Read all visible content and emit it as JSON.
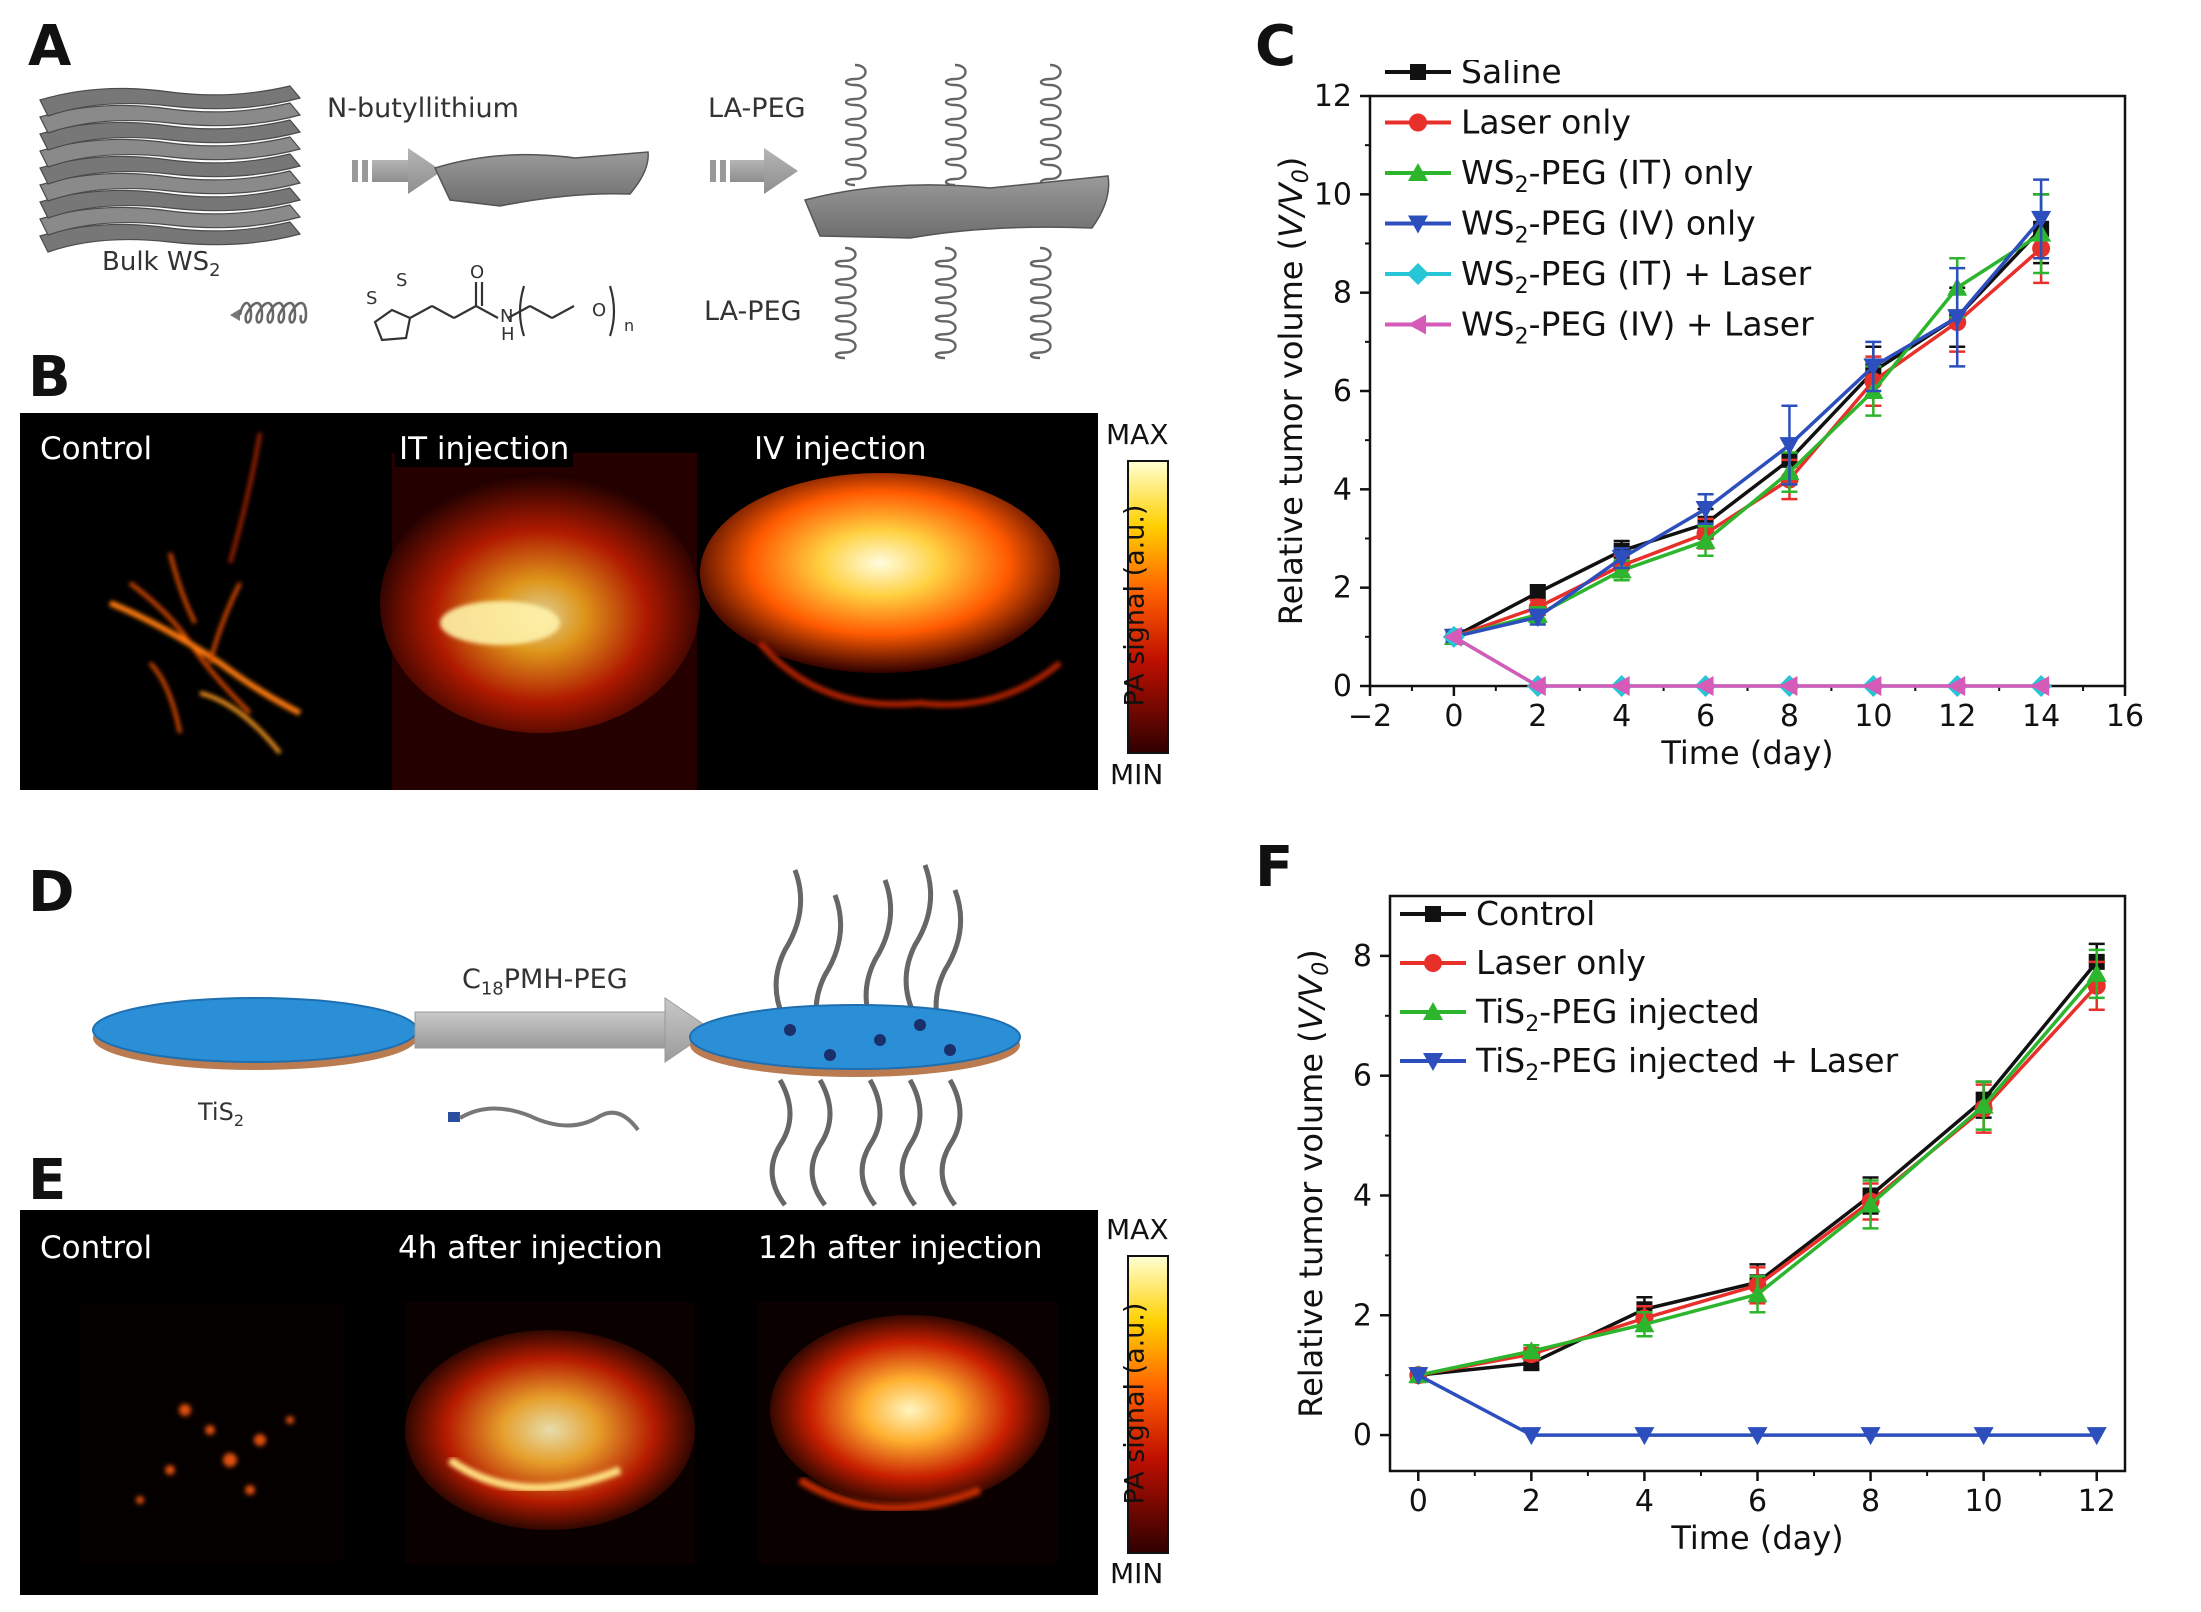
{
  "panels": {
    "A": {
      "letter": "A",
      "reagent1": "N-butyllithium",
      "reagent2": "LA-PEG",
      "bulk_label_main": "Bulk WS",
      "bulk_label_sub": "2",
      "chain_label": "LA-PEG",
      "struct_atom_s1": "S",
      "struct_atom_s2": "S",
      "struct_atom_o": "O",
      "struct_atom_n": "N",
      "struct_atom_h": "H",
      "struct_atom_o2": "O",
      "struct_sub_n": "n"
    },
    "B": {
      "letter": "B",
      "images": [
        "Control",
        "IT injection",
        "IV injection"
      ],
      "colorbar_max": "MAX",
      "colorbar_min": "MIN",
      "colorbar_title": "PA signal (a.u.)"
    },
    "D": {
      "letter": "D",
      "reagent_main": "C",
      "reagent_sub": "18",
      "reagent_rest": "PMH-PEG",
      "disc_label_main": "TiS",
      "disc_label_sub": "2"
    },
    "E": {
      "letter": "E",
      "images": [
        "Control",
        "4h after injection",
        "12h after injection"
      ],
      "colorbar_max": "MAX",
      "colorbar_min": "MIN",
      "colorbar_title": "PA signal (a.u.)"
    }
  },
  "chart_data": [
    {
      "panel": "C",
      "type": "line",
      "ylabel": "Relative tumor volume (V/V₀)",
      "ylabel_parts": {
        "pre": "Relative tumor volume (",
        "v": "V",
        "slash": "/",
        "v0": "V",
        "sub0": "0",
        "post": ")"
      },
      "xlabel": "Time (day)",
      "xlim": [
        -2,
        16
      ],
      "ylim": [
        0,
        12
      ],
      "xticks": [
        -2,
        0,
        2,
        4,
        6,
        8,
        10,
        12,
        14,
        16
      ],
      "yticks": [
        0,
        2,
        4,
        6,
        8,
        10,
        12
      ],
      "x": [
        0,
        2,
        4,
        6,
        8,
        10,
        12,
        14
      ],
      "legend_position": "top-left",
      "series": [
        {
          "name": "Saline",
          "name_main": "Saline",
          "name_sub": "",
          "name_rest": "",
          "color": "#111111",
          "marker": "square",
          "values": [
            1.0,
            1.9,
            2.75,
            3.3,
            4.6,
            6.4,
            7.5,
            9.3
          ],
          "err": [
            0.1,
            0.15,
            0.2,
            0.3,
            0.4,
            0.5,
            0.6,
            0.7
          ]
        },
        {
          "name": "Laser only",
          "name_main": "Laser only",
          "name_sub": "",
          "name_rest": "",
          "color": "#e8302a",
          "marker": "circle",
          "values": [
            1.0,
            1.6,
            2.45,
            3.1,
            4.2,
            6.2,
            7.4,
            8.9
          ],
          "err": [
            0.1,
            0.15,
            0.2,
            0.3,
            0.4,
            0.5,
            0.6,
            0.7
          ]
        },
        {
          "name": "WS2-PEG (IT) only",
          "name_main": "WS",
          "name_sub": "2",
          "name_rest": "-PEG (IT) only",
          "color": "#2db52d",
          "marker": "triangle-up",
          "values": [
            1.0,
            1.45,
            2.35,
            2.95,
            4.35,
            6.0,
            8.1,
            9.2
          ],
          "err": [
            0.1,
            0.15,
            0.2,
            0.3,
            0.4,
            0.5,
            0.6,
            0.8
          ]
        },
        {
          "name": "WS2-PEG (IV) only",
          "name_main": "WS",
          "name_sub": "2",
          "name_rest": "-PEG (IV) only",
          "color": "#2c4fbd",
          "marker": "triangle-down",
          "values": [
            1.0,
            1.4,
            2.6,
            3.6,
            4.9,
            6.5,
            7.5,
            9.5
          ],
          "err": [
            0.1,
            0.15,
            0.2,
            0.3,
            0.8,
            0.5,
            1.0,
            0.8
          ]
        },
        {
          "name": "WS2-PEG (IT) + Laser",
          "name_main": "WS",
          "name_sub": "2",
          "name_rest": "-PEG (IT) + Laser",
          "color": "#27c6d6",
          "marker": "diamond",
          "values": [
            1.0,
            0.0,
            0.0,
            0.0,
            0.0,
            0.0,
            0.0,
            0.0
          ],
          "err": [
            0,
            0,
            0,
            0,
            0,
            0,
            0,
            0
          ]
        },
        {
          "name": "WS2-PEG (IV) + Laser",
          "name_main": "WS",
          "name_sub": "2",
          "name_rest": "-PEG (IV) + Laser",
          "color": "#d65ab8",
          "marker": "triangle-left",
          "values": [
            1.0,
            0.0,
            0.0,
            0.0,
            0.0,
            0.0,
            0.0,
            0.0
          ],
          "err": [
            0,
            0,
            0,
            0,
            0,
            0,
            0,
            0
          ]
        }
      ]
    },
    {
      "panel": "F",
      "type": "line",
      "ylabel": "Relative tumor volume (V/V₀)",
      "ylabel_parts": {
        "pre": "Relative tumor volume (",
        "v": "V",
        "slash": "/",
        "v0": "V",
        "sub0": "0",
        "post": ")"
      },
      "xlabel": "Time (day)",
      "xlim": [
        -0.5,
        12.5
      ],
      "ylim": [
        -0.6,
        9
      ],
      "xticks": [
        0,
        2,
        4,
        6,
        8,
        10,
        12
      ],
      "yticks": [
        0,
        2,
        4,
        6,
        8
      ],
      "x": [
        0,
        2,
        4,
        6,
        8,
        10,
        12
      ],
      "legend_position": "top-left",
      "series": [
        {
          "name": "Control",
          "name_main": "Control",
          "name_sub": "",
          "name_rest": "",
          "color": "#111111",
          "marker": "square",
          "values": [
            1.0,
            1.2,
            2.1,
            2.55,
            4.0,
            5.6,
            7.9
          ],
          "err": [
            0.1,
            0.1,
            0.2,
            0.3,
            0.3,
            0.3,
            0.3
          ]
        },
        {
          "name": "Laser only",
          "name_main": "Laser only",
          "name_sub": "",
          "name_rest": "",
          "color": "#e8302a",
          "marker": "circle",
          "values": [
            1.0,
            1.35,
            1.95,
            2.5,
            3.9,
            5.45,
            7.5
          ],
          "err": [
            0.1,
            0.1,
            0.2,
            0.3,
            0.3,
            0.4,
            0.4
          ]
        },
        {
          "name": "TiS2-PEG injected",
          "name_main": "TiS",
          "name_sub": "2",
          "name_rest": "-PEG injected",
          "color": "#2db52d",
          "marker": "triangle-up",
          "values": [
            1.0,
            1.4,
            1.85,
            2.35,
            3.85,
            5.5,
            7.7
          ],
          "err": [
            0.1,
            0.1,
            0.2,
            0.3,
            0.4,
            0.4,
            0.4
          ]
        },
        {
          "name": "TiS2-PEG injected + Laser",
          "name_main": "TiS",
          "name_sub": "2",
          "name_rest": "-PEG injected + Laser",
          "color": "#2c4fbd",
          "marker": "triangle-down",
          "values": [
            1.0,
            0.0,
            0.0,
            0.0,
            0.0,
            0.0,
            0.0
          ],
          "err": [
            0,
            0,
            0,
            0,
            0,
            0,
            0
          ]
        }
      ]
    }
  ]
}
